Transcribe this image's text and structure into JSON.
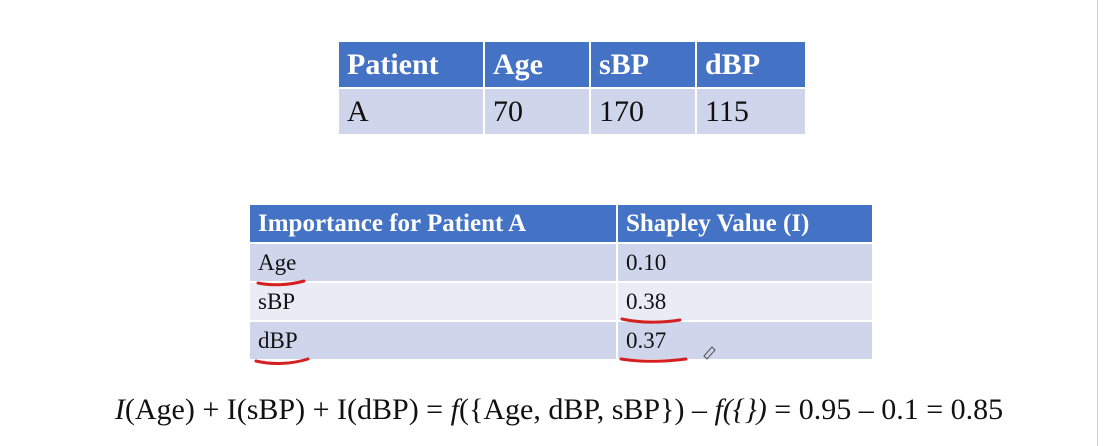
{
  "patient_table": {
    "headers": [
      "Patient",
      "Age",
      "sBP",
      "dBP"
    ],
    "row": [
      "A",
      "70",
      "170",
      "115"
    ]
  },
  "importance_table": {
    "headers": [
      "Importance for Patient A",
      "Shapley Value (I)"
    ],
    "rows": [
      {
        "feature": "Age",
        "value": "0.10"
      },
      {
        "feature": "sBP",
        "value": "0.38"
      },
      {
        "feature": "dBP",
        "value": "0.37"
      }
    ]
  },
  "equation": {
    "i_age_symbol": "I",
    "i_age_arg": "(Age) + I(sBP) + I(dBP) = ",
    "f1_symbol": "f",
    "f1_arg": "({Age, dBP, sBP}) – ",
    "f2_symbol": "f",
    "f2_arg": "({}) ",
    "result": "= 0.95 – 0.1 = 0.85"
  },
  "colors": {
    "header_blue": "#4472c4",
    "row_dark": "#cfd5ea",
    "row_light": "#e9ebf5",
    "annotation_red": "#d42020"
  }
}
